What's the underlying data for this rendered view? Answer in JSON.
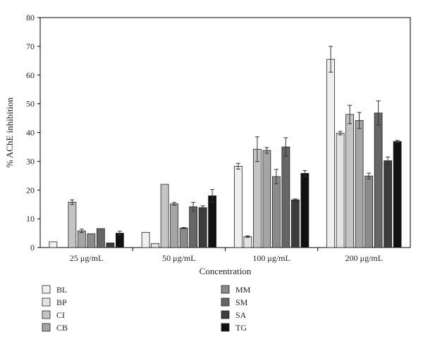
{
  "chart_data": {
    "type": "bar",
    "xlabel": "Concentration",
    "ylabel": "% AChE inhibition",
    "ylim": [
      0,
      80
    ],
    "yticks": [
      0,
      10,
      20,
      30,
      40,
      50,
      60,
      70,
      80
    ],
    "grid": false,
    "legend_position": "bottom-left, two columns",
    "categories": [
      "25 μg/mL",
      "50 μg/mL",
      "100 μg/mL",
      "200 μg/mL"
    ],
    "series": [
      {
        "name": "BL",
        "color": "#efefef",
        "values": [
          2.0,
          5.3,
          28.3,
          65.5
        ],
        "errors": [
          0,
          0,
          1.0,
          4.5
        ]
      },
      {
        "name": "BP",
        "color": "#e3e3e3",
        "values": [
          null,
          1.4,
          3.8,
          39.8
        ],
        "errors": [
          0,
          0,
          0.3,
          0.6
        ]
      },
      {
        "name": "CI",
        "color": "#c4c4c4",
        "values": [
          15.8,
          22.0,
          34.2,
          46.3
        ],
        "errors": [
          0.8,
          0,
          4.3,
          3.2
        ]
      },
      {
        "name": "CB",
        "color": "#a5a5a5",
        "values": [
          5.8,
          15.2,
          33.8,
          44.2
        ],
        "errors": [
          0.6,
          0.5,
          1.0,
          2.8
        ]
      },
      {
        "name": "MM",
        "color": "#8b8b8b",
        "values": [
          4.8,
          6.8,
          24.7,
          24.9
        ],
        "errors": [
          0,
          0.2,
          2.5,
          1.0
        ]
      },
      {
        "name": "SM",
        "color": "#666666",
        "values": [
          6.6,
          14.2,
          35.0,
          46.8
        ],
        "errors": [
          0,
          1.5,
          3.2,
          4.2
        ]
      },
      {
        "name": "SA",
        "color": "#3c3c3c",
        "values": [
          1.6,
          13.9,
          16.6,
          30.2
        ],
        "errors": [
          0,
          0.6,
          0.3,
          1.3
        ]
      },
      {
        "name": "TG",
        "color": "#111111",
        "values": [
          5.0,
          18.0,
          25.8,
          36.9
        ],
        "errors": [
          0.7,
          2.2,
          1.0,
          0.4
        ]
      }
    ]
  }
}
